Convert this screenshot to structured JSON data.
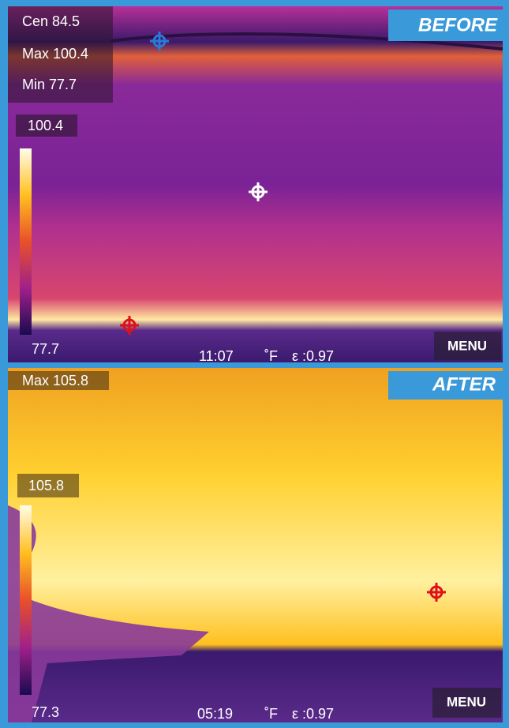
{
  "before": {
    "badge": "BEFORE",
    "readouts": [
      "Cen 84.5",
      "Max 100.4",
      "Min 77.7"
    ],
    "scale_max": "100.4",
    "scale_min": "77.7",
    "time": "11:07",
    "unit": "˚F",
    "emissivity": "ε :0.97",
    "menu": "MENU"
  },
  "after": {
    "badge": "AFTER",
    "readouts": [
      "Max 105.8"
    ],
    "scale_max": "105.8",
    "scale_min": "77.3",
    "time": "05:19",
    "unit": "˚F",
    "emissivity": "ε :0.97",
    "menu": "MENU"
  }
}
